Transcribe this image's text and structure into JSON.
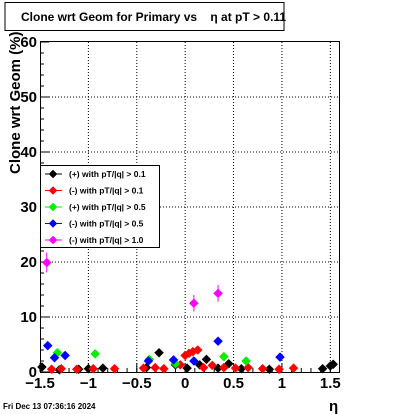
{
  "footer": {
    "timestamp": "Fri Dec 13 07:36:16 2024"
  },
  "chart_data": {
    "type": "scatter",
    "title": "Clone wrt Geom for Primary vs    η at pT > 0.11",
    "xlabel": "η",
    "ylabel": "Clone wrt Geom (%)",
    "xlim": [
      -1.5,
      1.6
    ],
    "ylim": [
      0,
      60
    ],
    "xticks": [
      -1.5,
      -1,
      -0.5,
      0,
      0.5,
      1,
      1.5
    ],
    "xtick_labels": [
      "−1.5",
      "−1",
      "−0.5",
      "0",
      "0.5",
      "1",
      "1.5"
    ],
    "yticks": [
      0,
      10,
      20,
      30,
      40,
      50,
      60
    ],
    "ytick_labels": [
      "0",
      "10",
      "20",
      "30",
      "40",
      "50",
      "60"
    ],
    "grid": true,
    "legend_position": "left",
    "series": [
      {
        "name": "(+) with pT/|q| > 0.1",
        "color": "#000000",
        "marker": "diamond",
        "points": [
          [
            -1.48,
            0.9
          ],
          [
            -1.3,
            0.4
          ],
          [
            -1.1,
            0.5
          ],
          [
            -1.0,
            0.6
          ],
          [
            -0.85,
            0.7
          ],
          [
            -0.4,
            0.8
          ],
          [
            -0.27,
            3.5
          ],
          [
            -0.1,
            1.3
          ],
          [
            0.02,
            0.7
          ],
          [
            0.15,
            1.3
          ],
          [
            0.22,
            2.3
          ],
          [
            0.34,
            0.7
          ],
          [
            0.45,
            1.5
          ],
          [
            0.58,
            0.6
          ],
          [
            0.87,
            0.5
          ],
          [
            1.42,
            0.6
          ],
          [
            1.5,
            1.1
          ],
          [
            1.53,
            1.4
          ]
        ]
      },
      {
        "name": "(-) with pT/|q| > 0.1",
        "color": "#ff0000",
        "marker": "diamond",
        "points": [
          [
            -1.38,
            0.5
          ],
          [
            -1.28,
            0.6
          ],
          [
            -1.12,
            0.5
          ],
          [
            -0.95,
            0.6
          ],
          [
            -0.73,
            0.6
          ],
          [
            -0.43,
            0.7
          ],
          [
            -0.31,
            0.8
          ],
          [
            -0.22,
            0.6
          ],
          [
            -0.05,
            1.3
          ],
          [
            0.0,
            3.0
          ],
          [
            0.04,
            3.4
          ],
          [
            0.08,
            3.7
          ],
          [
            0.13,
            4.0
          ],
          [
            0.19,
            0.8
          ],
          [
            0.28,
            1.2
          ],
          [
            0.4,
            0.8
          ],
          [
            0.52,
            0.7
          ],
          [
            0.65,
            0.8
          ],
          [
            0.8,
            0.6
          ],
          [
            0.97,
            0.5
          ],
          [
            1.12,
            0.7
          ]
        ]
      },
      {
        "name": "(+) with pT/|q| > 0.5",
        "color": "#00ee00",
        "marker": "diamond",
        "points": [
          [
            -1.32,
            3.5
          ],
          [
            -0.93,
            3.3
          ],
          [
            -0.37,
            2.3
          ],
          [
            -0.1,
            1.5
          ],
          [
            0.4,
            2.8
          ],
          [
            0.63,
            2.0
          ]
        ]
      },
      {
        "name": "(-) with pT/|q| > 0.5",
        "color": "#0000ff",
        "marker": "diamond",
        "points": [
          [
            -1.42,
            4.8
          ],
          [
            -1.35,
            2.6
          ],
          [
            -1.24,
            3.0
          ],
          [
            -0.38,
            2.0
          ],
          [
            -0.12,
            2.2
          ],
          [
            0.09,
            2.0
          ],
          [
            0.34,
            5.6
          ],
          [
            0.98,
            2.7
          ]
        ]
      },
      {
        "name": "(-) with pT/|q| > 1.0",
        "color": "#ff00ff",
        "marker": "diamond",
        "points": [
          [
            -1.43,
            19.9
          ],
          [
            0.09,
            12.5
          ],
          [
            0.34,
            14.3
          ]
        ],
        "errors": [
          1.8,
          1.5,
          1.5
        ]
      }
    ]
  }
}
